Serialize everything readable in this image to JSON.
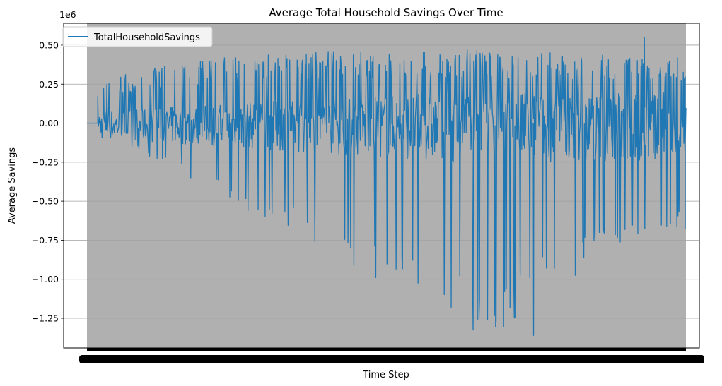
{
  "chart_data": {
    "type": "line",
    "title": "Average Total Household Savings Over Time",
    "xlabel": "Time Step",
    "ylabel": "Average Savings",
    "y_offset_label": "1e6",
    "y_scale_factor": 1000000,
    "ylim": [
      -1.44,
      0.64
    ],
    "yticks": [
      0.5,
      0.25,
      0.0,
      -0.25,
      -0.5,
      -0.75,
      -1.0,
      -1.25
    ],
    "ytick_labels": [
      "0.50",
      "0.25",
      "0.00",
      "−0.25",
      "−0.50",
      "−0.75",
      "−1.00",
      "−1.25"
    ],
    "grid": "horizontal",
    "legend_position": "upper-left",
    "x_tick_labels": "overlapping (illegible)",
    "series": [
      {
        "name": "TotalHouseholdSavings",
        "color": "#1f77b4",
        "flat_start_value": 0.0,
        "flat_end_fraction": 0.018,
        "upper_envelope": [
          0.27,
          0.3,
          0.33,
          0.36,
          0.38,
          0.4,
          0.42,
          0.43,
          0.44,
          0.45,
          0.46,
          0.46,
          0.47,
          0.47,
          0.47,
          0.48,
          0.48,
          0.48,
          0.47,
          0.47,
          0.47,
          0.46,
          0.46,
          0.45,
          0.45,
          0.44,
          0.43,
          0.42,
          0.42,
          0.42
        ],
        "lower_envelope": [
          -0.02,
          -0.1,
          -0.18,
          -0.26,
          -0.33,
          -0.4,
          -0.47,
          -0.54,
          -0.6,
          -0.67,
          -0.74,
          -0.81,
          -0.88,
          -0.95,
          -1.02,
          -1.09,
          -1.16,
          -1.23,
          -1.3,
          -1.36,
          -1.31,
          -1.22,
          -1.12,
          -1.03,
          -0.93,
          -0.84,
          -0.76,
          -0.7,
          -0.68,
          -0.68
        ],
        "notable_values": {
          "max": 0.55,
          "min": -1.36,
          "last": -0.68
        }
      }
    ]
  }
}
